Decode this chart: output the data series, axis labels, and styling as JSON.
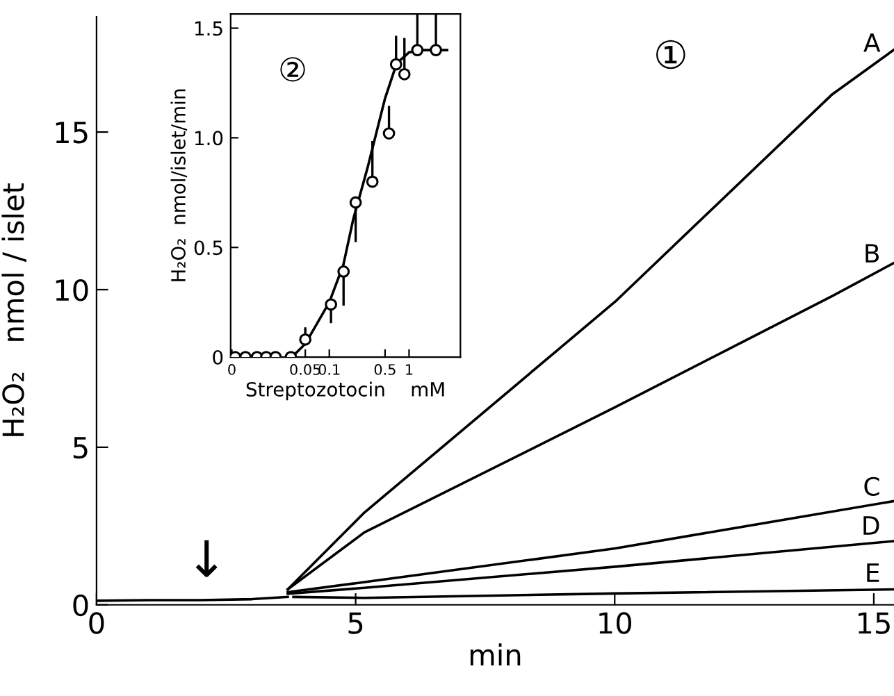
{
  "chart_data": [
    {
      "type": "line",
      "xlabel": "min",
      "ylabel": "H₂O₂   nmol / islet",
      "xlim": [
        0,
        15.39
      ],
      "ylim": [
        0,
        18.66
      ],
      "xticks": [
        0,
        5,
        10,
        15
      ],
      "yticks": [
        0,
        5,
        10,
        15
      ],
      "grid": false,
      "legend": false,
      "marker": "none",
      "line_style": "solid",
      "annotations": [
        "①",
        "↓"
      ],
      "series": [
        {
          "color": "#000000",
          "x": [
            0,
            1,
            2,
            3,
            3.69
          ],
          "values": [
            0.13,
            0.15,
            0.15,
            0.18,
            0.25
          ]
        },
        {
          "name": "A",
          "color": "#000000",
          "x": [
            3.69,
            5.17,
            10.01,
            14.2,
            15.38
          ],
          "values": [
            0.49,
            2.93,
            9.62,
            16.2,
            17.6
          ]
        },
        {
          "name": "B",
          "color": "#000000",
          "x": [
            3.69,
            5.17,
            10.01,
            14.2,
            15.38
          ],
          "values": [
            0.49,
            2.3,
            6.27,
            9.8,
            10.84
          ]
        },
        {
          "name": "C",
          "color": "#000000",
          "x": [
            3.69,
            5.17,
            10.01,
            15.38
          ],
          "values": [
            0.4,
            0.72,
            1.79,
            3.29
          ]
        },
        {
          "name": "D",
          "color": "#000000",
          "x": [
            3.69,
            5.17,
            10.01,
            15.38
          ],
          "values": [
            0.35,
            0.54,
            1.21,
            2.02
          ]
        },
        {
          "name": "E",
          "color": "#000000",
          "x": [
            3.8,
            5.17,
            10.01,
            15.38
          ],
          "values": [
            0.25,
            0.22,
            0.36,
            0.49
          ]
        }
      ]
    },
    {
      "type": "scatter",
      "xlabel": "Streptozotocin    mM",
      "ylabel": "H₂O₂  nmol/islet/min",
      "log": "x",
      "xlim": [
        0.0058,
        4.4
      ],
      "ylim": [
        0,
        1.565
      ],
      "xticks": [
        {
          "value": 0.006,
          "label": "0"
        },
        0.05,
        0.1,
        0.5,
        1
      ],
      "yticks": [
        0,
        0.5,
        {
          "value": 1.0,
          "label": "1.0"
        },
        1.5
      ],
      "grid": false,
      "legend": false,
      "marker": "circle",
      "annotations": [
        "②"
      ],
      "series": [
        {
          "color": "#000000",
          "x": [
            0.0066,
            0.0089,
            0.0124,
            0.0162,
            0.0212,
            0.033,
            0.05,
            0.105,
            0.151,
            0.214,
            0.347,
            0.56,
            0.687,
            0.874,
            1.27,
            2.17
          ],
          "values": [
            0,
            0,
            0,
            0,
            0,
            0,
            0.08,
            0.24,
            0.39,
            0.705,
            0.8,
            1.02,
            1.335,
            1.29,
            1.4,
            1.4
          ],
          "errors": [
            null,
            null,
            null,
            null,
            null,
            null,
            [
              0.08,
              0.13
            ],
            [
              0.16,
              0.24
            ],
            [
              0.24,
              0.39
            ],
            [
              0.53,
              0.705
            ],
            [
              0.8,
              0.98
            ],
            [
              1.02,
              1.14
            ],
            [
              1.335,
              1.46
            ],
            [
              1.29,
              1.45
            ],
            [
              1.4,
              1.565
            ],
            [
              1.4,
              1.565
            ]
          ]
        },
        {
          "type": "line",
          "color": "#000000",
          "marker": "none",
          "x": [
            0.034,
            0.05,
            0.1,
            0.15,
            0.2,
            0.3,
            0.5,
            0.7,
            1,
            1.5,
            3
          ],
          "values": [
            0,
            0.06,
            0.25,
            0.42,
            0.63,
            0.86,
            1.18,
            1.34,
            1.39,
            1.4,
            1.4
          ]
        }
      ]
    }
  ]
}
